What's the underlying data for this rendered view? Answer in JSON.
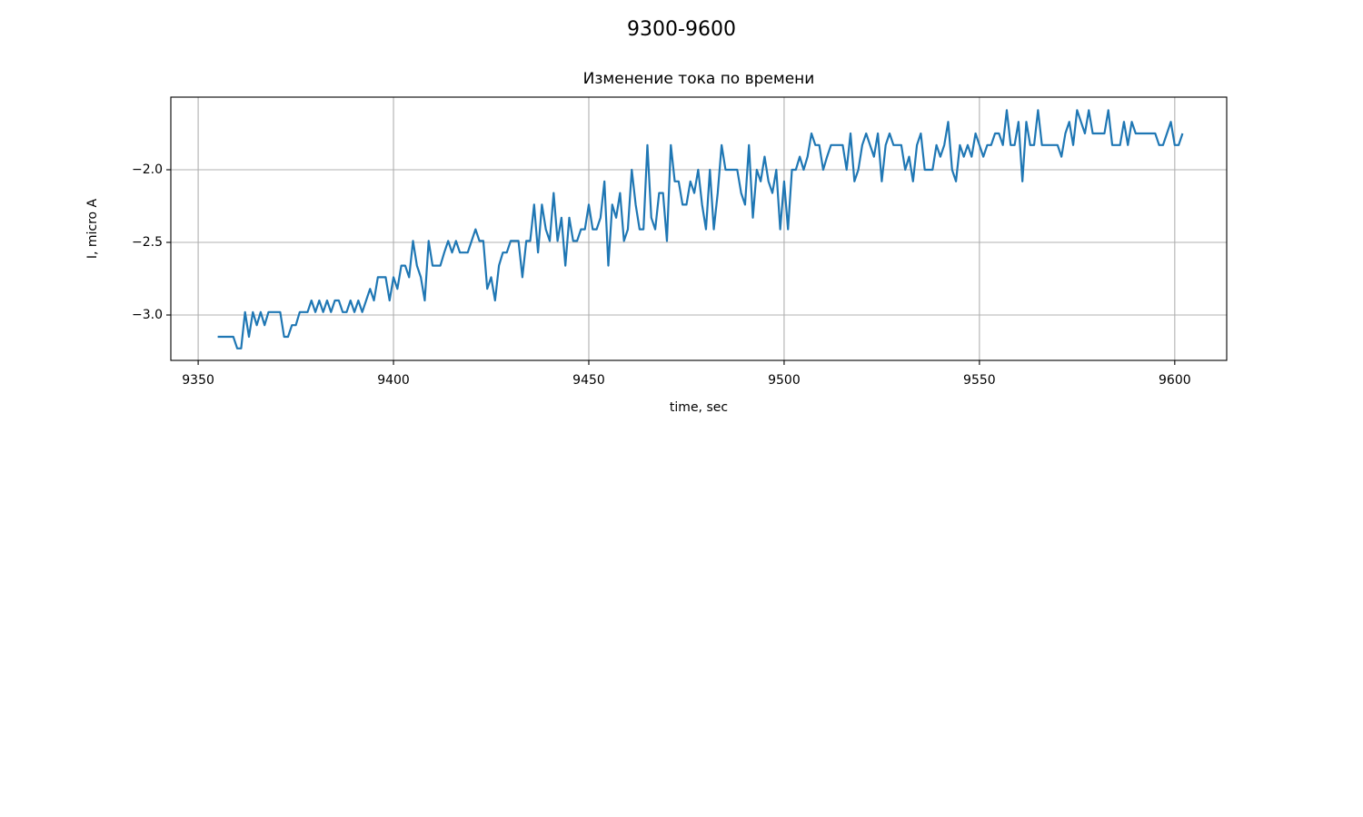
{
  "chart_data": {
    "type": "line",
    "suptitle": "9300-9600",
    "title": "Изменение тока по времени",
    "xlabel": "time, sec",
    "ylabel": "I, micro A",
    "grid": true,
    "xlim": [
      9343.0,
      9613.3
    ],
    "ylim": [
      -3.3125,
      -1.5
    ],
    "xticks": [
      9350,
      9400,
      9450,
      9500,
      9550,
      9600
    ],
    "yticks": [
      {
        "value": -3.0,
        "label": "−3.0"
      },
      {
        "value": -2.5,
        "label": "−2.5"
      },
      {
        "value": -2.0,
        "label": "−2.0"
      }
    ],
    "x": [
      9355,
      9356,
      9357,
      9358,
      9359,
      9360,
      9361,
      9362,
      9363,
      9364,
      9365,
      9366,
      9367,
      9368,
      9369,
      9370,
      9371,
      9372,
      9373,
      9374,
      9375,
      9376,
      9377,
      9378,
      9379,
      9380,
      9381,
      9382,
      9383,
      9384,
      9385,
      9386,
      9387,
      9388,
      9389,
      9390,
      9391,
      9392,
      9393,
      9394,
      9395,
      9396,
      9397,
      9398,
      9399,
      9400,
      9401,
      9402,
      9403,
      9404,
      9405,
      9406,
      9407,
      9408,
      9409,
      9410,
      9411,
      9412,
      9413,
      9414,
      9415,
      9416,
      9417,
      9418,
      9419,
      9420,
      9421,
      9422,
      9423,
      9424,
      9425,
      9426,
      9427,
      9428,
      9429,
      9430,
      9431,
      9432,
      9433,
      9434,
      9435,
      9436,
      9437,
      9438,
      9439,
      9440,
      9441,
      9442,
      9443,
      9444,
      9445,
      9446,
      9447,
      9448,
      9449,
      9450,
      9451,
      9452,
      9453,
      9454,
      9455,
      9456,
      9457,
      9458,
      9459,
      9460,
      9461,
      9462,
      9463,
      9464,
      9465,
      9466,
      9467,
      9468,
      9469,
      9470,
      9471,
      9472,
      9473,
      9474,
      9475,
      9476,
      9477,
      9478,
      9479,
      9480,
      9481,
      9482,
      9483,
      9484,
      9485,
      9486,
      9487,
      9488,
      9489,
      9490,
      9491,
      9492,
      9493,
      9494,
      9495,
      9496,
      9497,
      9498,
      9499,
      9500,
      9501,
      9502,
      9503,
      9504,
      9505,
      9506,
      9507,
      9508,
      9509,
      9510,
      9511,
      9512,
      9513,
      9514,
      9515,
      9516,
      9517,
      9518,
      9519,
      9520,
      9521,
      9522,
      9523,
      9524,
      9525,
      9526,
      9527,
      9528,
      9529,
      9530,
      9531,
      9532,
      9533,
      9534,
      9535,
      9536,
      9537,
      9538,
      9539,
      9540,
      9541,
      9542,
      9543,
      9544,
      9545,
      9546,
      9547,
      9548,
      9549,
      9550,
      9551,
      9552,
      9553,
      9554,
      9555,
      9556,
      9557,
      9558,
      9559,
      9560,
      9561,
      9562,
      9563,
      9564,
      9565,
      9566,
      9567,
      9568,
      9569,
      9570,
      9571,
      9572,
      9573,
      9574,
      9575,
      9576,
      9577,
      9578,
      9579,
      9580,
      9581,
      9582,
      9583,
      9584,
      9585,
      9586,
      9587,
      9588,
      9589,
      9590,
      9591,
      9592,
      9593,
      9594,
      9595,
      9596,
      9597,
      9598,
      9599,
      9600,
      9601,
      9602
    ],
    "series": [
      {
        "color": "#1f77b4",
        "values": [
          -3.15,
          -3.15,
          -3.15,
          -3.15,
          -3.15,
          -3.23,
          -3.23,
          -2.98,
          -3.15,
          -2.98,
          -3.07,
          -2.98,
          -3.07,
          -2.98,
          -2.98,
          -2.98,
          -2.98,
          -3.15,
          -3.15,
          -3.07,
          -3.07,
          -2.98,
          -2.98,
          -2.98,
          -2.9,
          -2.98,
          -2.9,
          -2.98,
          -2.9,
          -2.98,
          -2.9,
          -2.9,
          -2.98,
          -2.98,
          -2.9,
          -2.98,
          -2.9,
          -2.98,
          -2.9,
          -2.82,
          -2.9,
          -2.74,
          -2.74,
          -2.74,
          -2.9,
          -2.74,
          -2.82,
          -2.66,
          -2.66,
          -2.74,
          -2.49,
          -2.66,
          -2.74,
          -2.9,
          -2.49,
          -2.66,
          -2.66,
          -2.66,
          -2.57,
          -2.49,
          -2.57,
          -2.49,
          -2.57,
          -2.57,
          -2.57,
          -2.49,
          -2.41,
          -2.49,
          -2.49,
          -2.82,
          -2.74,
          -2.9,
          -2.66,
          -2.57,
          -2.57,
          -2.49,
          -2.49,
          -2.49,
          -2.74,
          -2.49,
          -2.49,
          -2.24,
          -2.57,
          -2.24,
          -2.41,
          -2.49,
          -2.16,
          -2.49,
          -2.33,
          -2.66,
          -2.33,
          -2.49,
          -2.49,
          -2.41,
          -2.41,
          -2.24,
          -2.41,
          -2.41,
          -2.33,
          -2.08,
          -2.66,
          -2.24,
          -2.33,
          -2.16,
          -2.49,
          -2.41,
          -2.0,
          -2.24,
          -2.41,
          -2.41,
          -1.83,
          -2.33,
          -2.41,
          -2.16,
          -2.16,
          -2.49,
          -1.83,
          -2.08,
          -2.08,
          -2.24,
          -2.24,
          -2.08,
          -2.16,
          -2.0,
          -2.24,
          -2.41,
          -2.0,
          -2.41,
          -2.16,
          -1.83,
          -2.0,
          -2.0,
          -2.0,
          -2.0,
          -2.16,
          -2.24,
          -1.83,
          -2.33,
          -2.0,
          -2.08,
          -1.91,
          -2.08,
          -2.16,
          -2.0,
          -2.41,
          -2.08,
          -2.41,
          -2.0,
          -2.0,
          -1.91,
          -2.0,
          -1.91,
          -1.75,
          -1.83,
          -1.83,
          -2.0,
          -1.91,
          -1.83,
          -1.83,
          -1.83,
          -1.83,
          -2.0,
          -1.75,
          -2.08,
          -2.0,
          -1.83,
          -1.75,
          -1.83,
          -1.91,
          -1.75,
          -2.08,
          -1.83,
          -1.75,
          -1.83,
          -1.83,
          -1.83,
          -2.0,
          -1.91,
          -2.08,
          -1.83,
          -1.75,
          -2.0,
          -2.0,
          -2.0,
          -1.83,
          -1.91,
          -1.83,
          -1.67,
          -2.0,
          -2.08,
          -1.83,
          -1.91,
          -1.83,
          -1.91,
          -1.75,
          -1.83,
          -1.91,
          -1.83,
          -1.83,
          -1.75,
          -1.75,
          -1.83,
          -1.59,
          -1.83,
          -1.83,
          -1.67,
          -2.08,
          -1.67,
          -1.83,
          -1.83,
          -1.59,
          -1.83,
          -1.83,
          -1.83,
          -1.83,
          -1.83,
          -1.91,
          -1.75,
          -1.67,
          -1.83,
          -1.59,
          -1.67,
          -1.75,
          -1.59,
          -1.75,
          -1.75,
          -1.75,
          -1.75,
          -1.59,
          -1.83,
          -1.83,
          -1.83,
          -1.67,
          -1.83,
          -1.67,
          -1.75,
          -1.75,
          -1.75,
          -1.75,
          -1.75,
          -1.75,
          -1.83,
          -1.83,
          -1.75,
          -1.67,
          -1.83,
          -1.83,
          -1.75
        ]
      }
    ]
  }
}
